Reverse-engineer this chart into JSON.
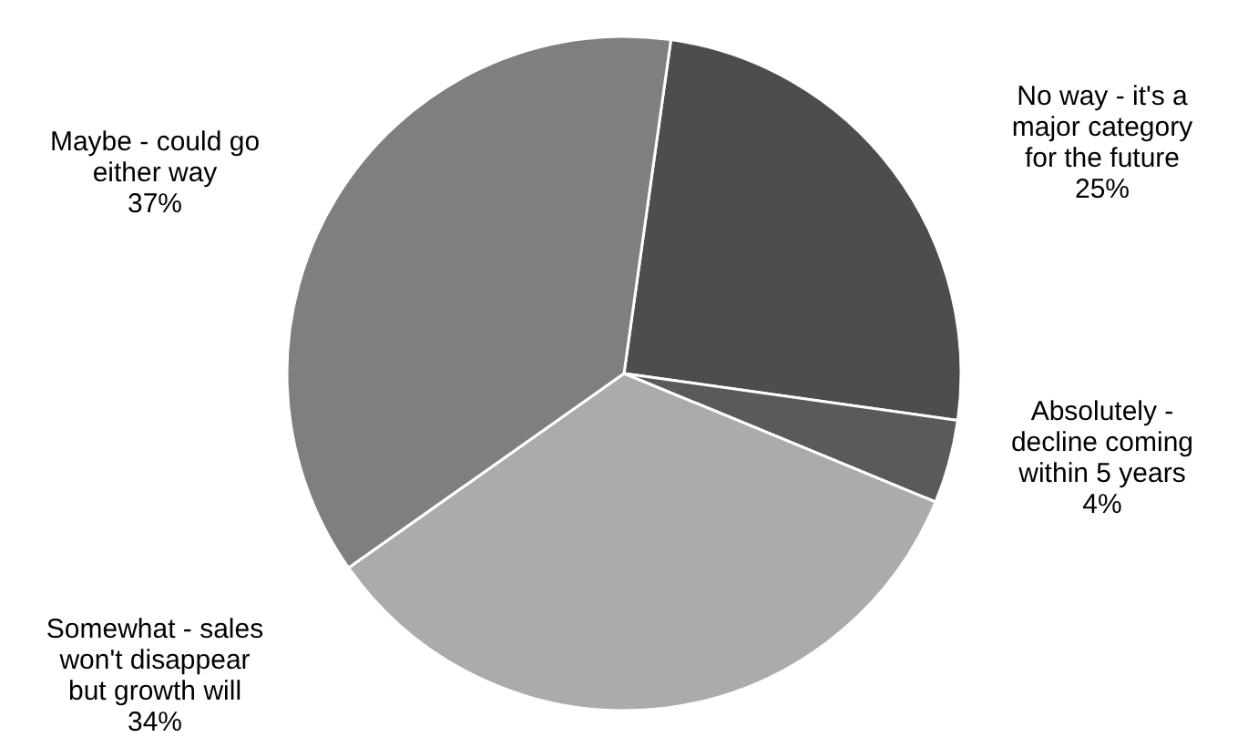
{
  "chart_data": {
    "type": "pie",
    "categories": [
      "No way - it's a major category for the future",
      "Absolutely - decline coming within 5 years",
      "Somewhat - sales won't disappear but growth will",
      "Maybe - could go either way"
    ],
    "values": [
      25,
      4,
      34,
      37
    ],
    "value_labels": [
      "25%",
      "4%",
      "34%",
      "37%"
    ],
    "colors": [
      "#4d4d4d",
      "#5a5a5a",
      "#ababab",
      "#7f7f7f"
    ],
    "legend": false
  }
}
